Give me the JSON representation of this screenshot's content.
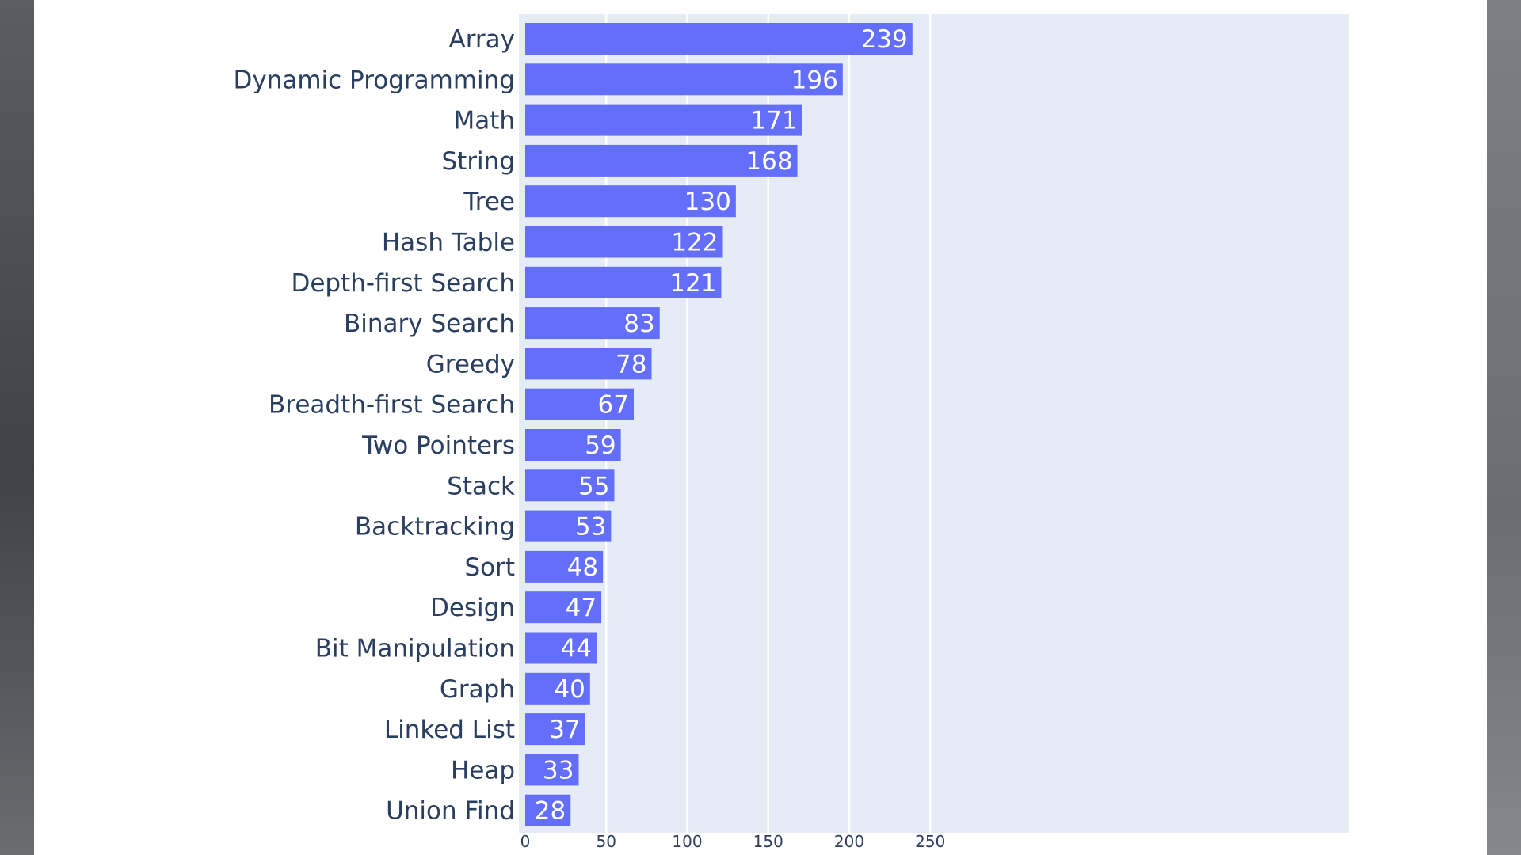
{
  "chart_data": {
    "type": "bar",
    "orientation": "horizontal",
    "categories": [
      "Array",
      "Dynamic Programming",
      "Math",
      "String",
      "Tree",
      "Hash Table",
      "Depth-first Search",
      "Binary Search",
      "Greedy",
      "Breadth-first Search",
      "Two Pointers",
      "Stack",
      "Backtracking",
      "Sort",
      "Design",
      "Bit Manipulation",
      "Graph",
      "Linked List",
      "Heap",
      "Union Find"
    ],
    "values": [
      239,
      196,
      171,
      168,
      130,
      122,
      121,
      83,
      78,
      67,
      59,
      55,
      53,
      48,
      47,
      44,
      40,
      37,
      33,
      28
    ],
    "xlim": [
      0,
      252
    ],
    "xticks": [
      0,
      50,
      100,
      150,
      200,
      250
    ],
    "grid": true,
    "bar_color": "#636efa",
    "plot_bg": "#e5ecf6",
    "data_labels": "inside-end"
  }
}
